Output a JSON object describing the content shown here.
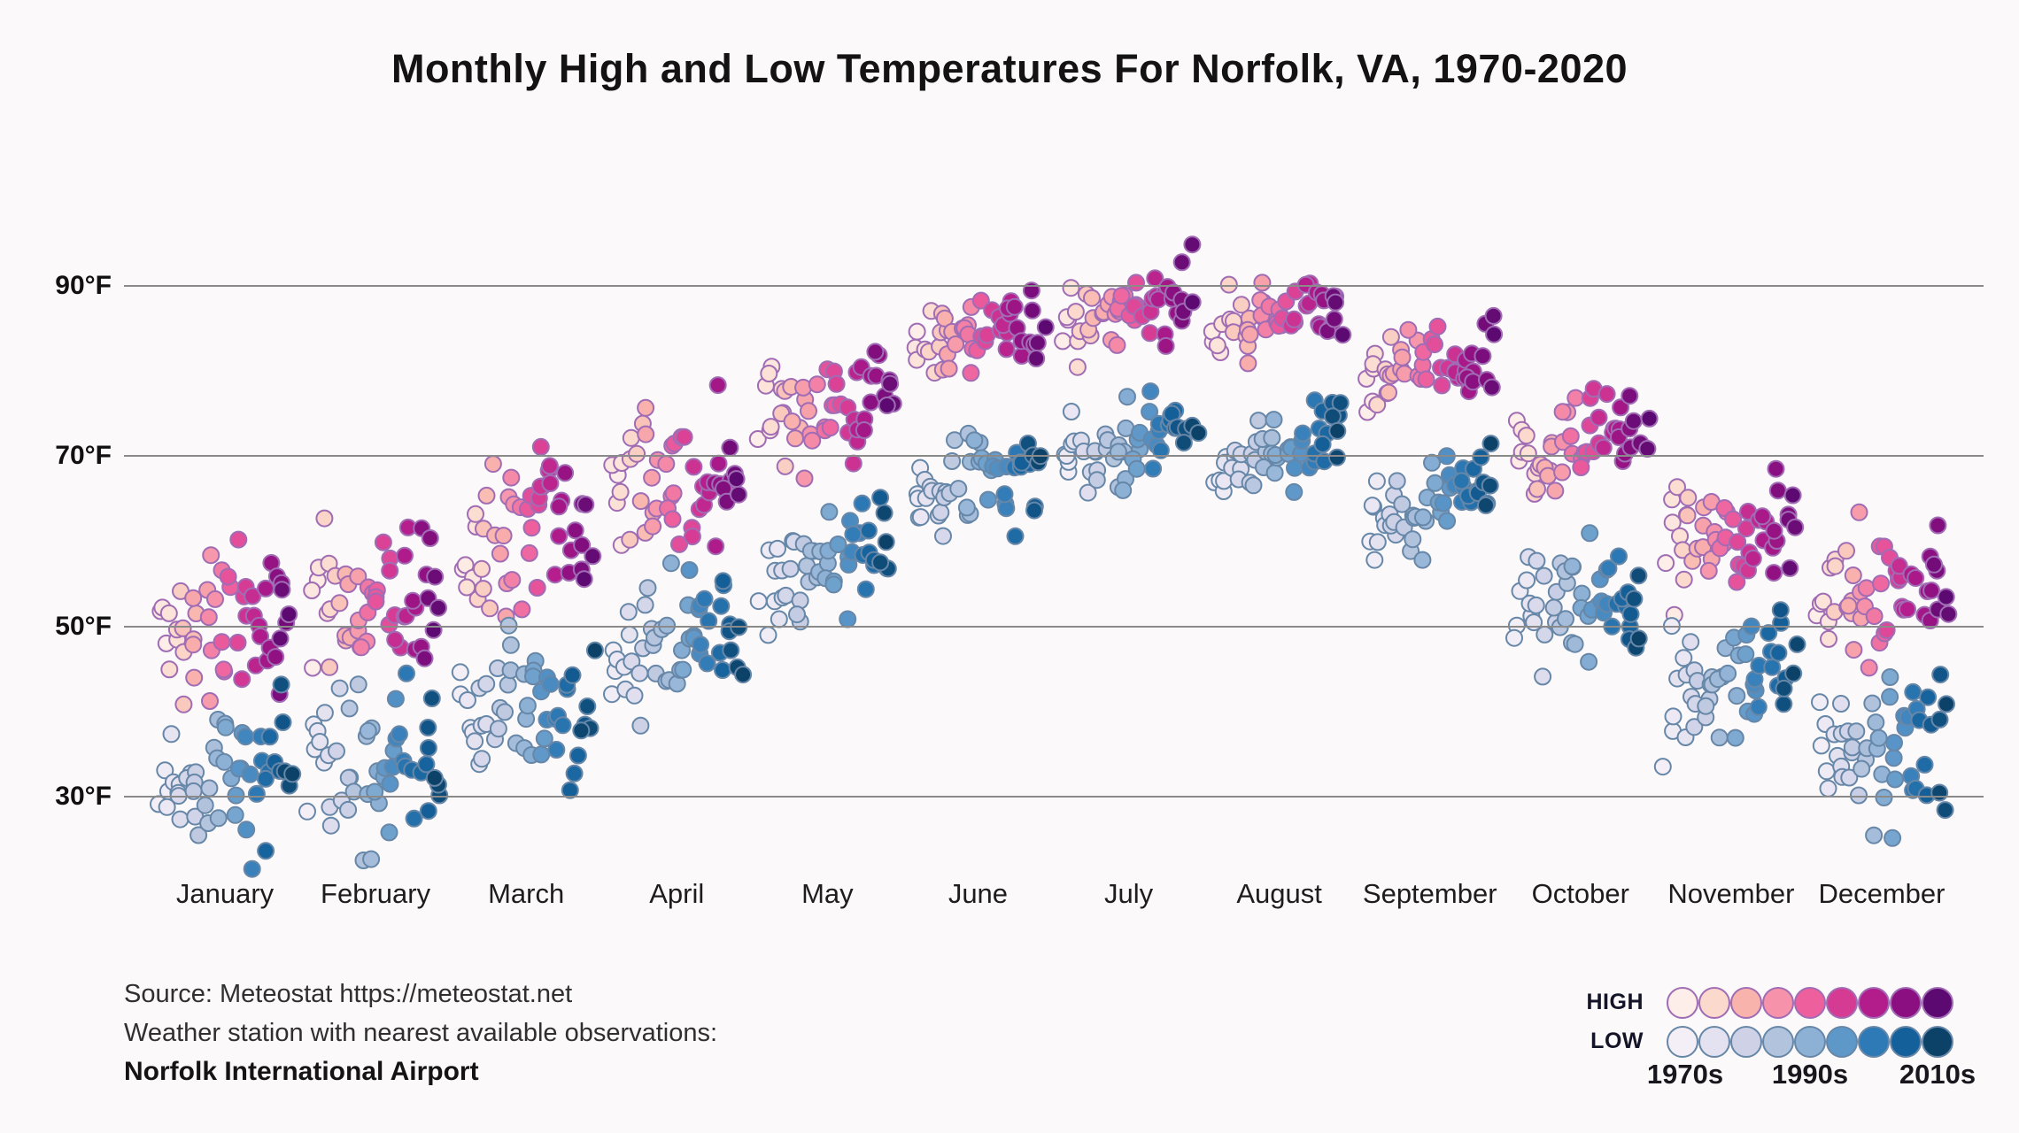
{
  "chart_data": {
    "type": "scatter",
    "title": "Monthly High and Low Temperatures For Norfolk, VA, 1970-2020",
    "x_categories": [
      "January",
      "February",
      "March",
      "April",
      "May",
      "June",
      "July",
      "August",
      "September",
      "October",
      "November",
      "December"
    ],
    "y_axis": {
      "unit": "°F",
      "ticks": [
        {
          "label": "90°F",
          "value": 90
        },
        {
          "label": "70°F",
          "value": 70
        },
        {
          "label": "50°F",
          "value": 50
        },
        {
          "label": "30°F",
          "value": 30
        }
      ],
      "range_F": [
        22,
        96
      ],
      "grid": true
    },
    "years": {
      "start": 1970,
      "end": 2020
    },
    "x_encoding": "month band, years ordered left (1970) to right (2020) within each band",
    "color_encoding": "point color darkens with decade, 1970s lightest to 2010s darkest",
    "series": [
      {
        "name": "HIGH",
        "monthly_mean_F": [
          49,
          52,
          59,
          68,
          76,
          84.5,
          87.5,
          86,
          81,
          71,
          61,
          53.5
        ],
        "monthly_sd_F": [
          5,
          5,
          5,
          4,
          3.5,
          2.8,
          2.5,
          2.2,
          2.5,
          3,
          3.5,
          4.5
        ],
        "warming_trend_F_over_period": 3,
        "color_stops": [
          "#fdeee9",
          "#fbd9cc",
          "#f8b4ac",
          "#f693ab",
          "#ee5f9e",
          "#d63b94",
          "#b21c8b",
          "#8c0f81",
          "#5c0a72"
        ],
        "stroke_color": "#a06cb4"
      },
      {
        "name": "LOW",
        "monthly_mean_F": [
          31,
          33.5,
          40,
          48,
          57.5,
          66.5,
          71,
          70.5,
          64.5,
          53.5,
          43.5,
          35.5
        ],
        "monthly_sd_F": [
          5,
          5,
          4.5,
          4,
          3.5,
          3,
          2.5,
          2.2,
          2.8,
          3.5,
          3.5,
          4.5
        ],
        "warming_trend_F_over_period": 3.5,
        "color_stops": [
          "#f4eff7",
          "#e4e1f0",
          "#cfd2e7",
          "#b2c3dd",
          "#8db1d5",
          "#5e98c9",
          "#2e7ab6",
          "#14609a",
          "#0c4267"
        ],
        "stroke_color": "#6787a8"
      }
    ],
    "legend": {
      "high_label": "HIGH",
      "low_label": "LOW",
      "decade_labels": [
        "1970s",
        "1990s",
        "2010s"
      ]
    },
    "source": {
      "line1": "Source: Meteostat https://meteostat.net",
      "line2": "Weather station with nearest available observations:",
      "line3": "Norfolk International Airport"
    }
  },
  "colors": {
    "background": "#fcf9fa",
    "gridline": "#8a8a8a",
    "title_text": "#131313",
    "label_text": "#1d1d1d",
    "source_text": "#2f2f2f"
  }
}
